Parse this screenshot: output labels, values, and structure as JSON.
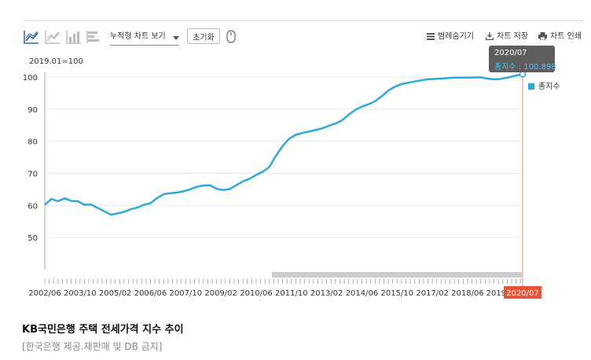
{
  "toolbar": {
    "icons": [
      "line-chart-icon",
      "area-chart-icon",
      "bar-chart-icon",
      "horizontal-bar-chart-icon"
    ],
    "select_label": "누적형 차트 보기",
    "reset_label": "초기화",
    "legend_toggle_label": "범례숨기기",
    "save_label": "차트 저장",
    "print_label": "차트 인쇄"
  },
  "colors": {
    "series": "#2fa8e0",
    "cursor": "#f2a48e",
    "badge": "#e8543a",
    "scrollbar": "#cccccc"
  },
  "chart_data": {
    "type": "line",
    "unit_label": "2019.01=100",
    "yticks": [
      50,
      60,
      70,
      80,
      90,
      100
    ],
    "ylim": [
      40,
      100
    ],
    "xlim": [
      "2002/06",
      "2020/07"
    ],
    "xticks": [
      "2002/06",
      "2003/10",
      "2005/02",
      "2006/06",
      "2007/10",
      "2009/02",
      "2010/06",
      "2011/10",
      "2013/02",
      "2014/06",
      "2015/10",
      "2017/02",
      "2018/06",
      "2019"
    ],
    "x_highlight_label": "2020/07",
    "legend_position": "right",
    "series": [
      {
        "name": "총지수",
        "points": [
          [
            "2002/06",
            60.2
          ],
          [
            "2002/09",
            62.0
          ],
          [
            "2002/12",
            61.3
          ],
          [
            "2003/03",
            62.2
          ],
          [
            "2003/06",
            61.4
          ],
          [
            "2003/09",
            61.3
          ],
          [
            "2003/12",
            60.2
          ],
          [
            "2004/03",
            60.3
          ],
          [
            "2004/06",
            59.2
          ],
          [
            "2004/09",
            58.2
          ],
          [
            "2004/12",
            57.1
          ],
          [
            "2005/03",
            57.5
          ],
          [
            "2005/06",
            58.0
          ],
          [
            "2005/09",
            58.8
          ],
          [
            "2005/12",
            59.3
          ],
          [
            "2006/03",
            60.2
          ],
          [
            "2006/06",
            60.7
          ],
          [
            "2006/09",
            62.3
          ],
          [
            "2006/12",
            63.5
          ],
          [
            "2007/03",
            63.8
          ],
          [
            "2007/06",
            64.0
          ],
          [
            "2007/09",
            64.4
          ],
          [
            "2007/12",
            65.0
          ],
          [
            "2008/03",
            65.8
          ],
          [
            "2008/06",
            66.2
          ],
          [
            "2008/09",
            66.3
          ],
          [
            "2008/12",
            65.2
          ],
          [
            "2009/03",
            64.8
          ],
          [
            "2009/06",
            65.1
          ],
          [
            "2009/09",
            66.3
          ],
          [
            "2009/12",
            67.5
          ],
          [
            "2010/03",
            68.3
          ],
          [
            "2010/06",
            69.5
          ],
          [
            "2010/09",
            70.5
          ],
          [
            "2010/12",
            72.0
          ],
          [
            "2011/03",
            75.5
          ],
          [
            "2011/06",
            78.5
          ],
          [
            "2011/09",
            80.8
          ],
          [
            "2011/12",
            82.0
          ],
          [
            "2012/03",
            82.6
          ],
          [
            "2012/06",
            83.0
          ],
          [
            "2012/09",
            83.5
          ],
          [
            "2012/12",
            84.0
          ],
          [
            "2013/03",
            84.8
          ],
          [
            "2013/06",
            85.5
          ],
          [
            "2013/09",
            86.5
          ],
          [
            "2013/12",
            88.3
          ],
          [
            "2014/03",
            89.8
          ],
          [
            "2014/06",
            90.8
          ],
          [
            "2014/09",
            91.5
          ],
          [
            "2014/12",
            92.5
          ],
          [
            "2015/03",
            94.0
          ],
          [
            "2015/06",
            95.8
          ],
          [
            "2015/09",
            97.0
          ],
          [
            "2015/12",
            97.8
          ],
          [
            "2016/03",
            98.2
          ],
          [
            "2016/06",
            98.6
          ],
          [
            "2016/09",
            99.0
          ],
          [
            "2016/12",
            99.3
          ],
          [
            "2017/06",
            99.5
          ],
          [
            "2017/12",
            99.8
          ],
          [
            "2018/06",
            99.8
          ],
          [
            "2018/12",
            99.9
          ],
          [
            "2019/03",
            99.5
          ],
          [
            "2019/06",
            99.3
          ],
          [
            "2019/09",
            99.4
          ],
          [
            "2019/12",
            99.8
          ],
          [
            "2020/03",
            100.3
          ],
          [
            "2020/07",
            100.898
          ]
        ]
      }
    ],
    "tooltip": {
      "date": "2020/07",
      "text": "총지수 : 100.898"
    }
  },
  "caption": {
    "title": "KB국민은행 주택 전세가격 지수 추이",
    "credit": "[한국은행 제공.재판매 및 DB 금지]"
  }
}
